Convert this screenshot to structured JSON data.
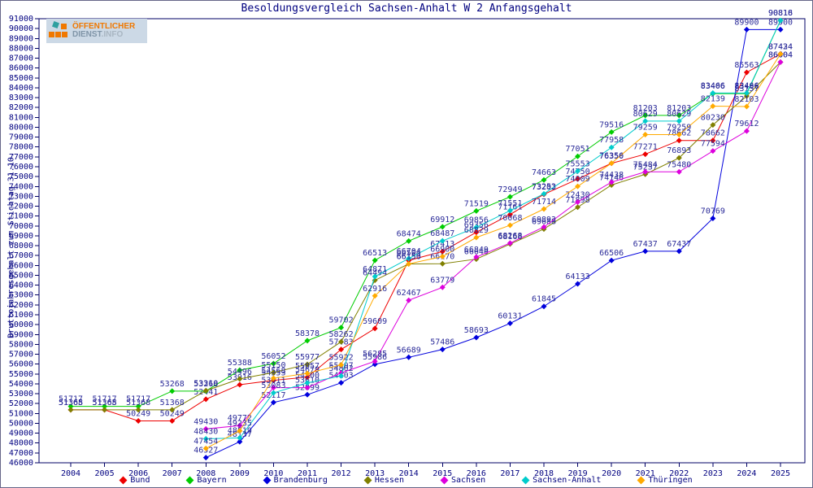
{
  "page": {
    "title": "Besoldungsvergleich Sachsen-Anhalt W 2 Anfangsgehalt"
  },
  "logo": {
    "line1": "ÖFFENTLICHER",
    "line2": "DIENST",
    "line2_suffix": ".INFO",
    "square_color": "#f07800",
    "accent_square_color": "#2fa0a0"
  },
  "axis": {
    "label_color": "#000080",
    "frame_color": "#000066",
    "point_label_color": "#2b2b99"
  },
  "chart_data": {
    "type": "line",
    "title": "Besoldungsvergleich Sachsen-Anhalt W 2 Anfangsgehalt",
    "xlabel": "",
    "ylabel": "Bruttojahresgehalt zum Stichtag 31.10.",
    "ylim": [
      46000,
      91000
    ],
    "ytick_step": 1000,
    "grid": false,
    "legend_position": "bottom",
    "point_labels": true,
    "years": [
      2004,
      2005,
      2006,
      2007,
      2008,
      2009,
      2010,
      2011,
      2012,
      2013,
      2014,
      2015,
      2016,
      2017,
      2018,
      2019,
      2020,
      2021,
      2022,
      2023,
      2024,
      2025
    ],
    "series": [
      {
        "name": "Bund",
        "color": "#ee0000",
        "values": [
          51365,
          51365,
          50249,
          50249,
          52441,
          53916,
          54353,
          54679,
          57483,
          59609,
          66504,
          67413,
          69356,
          71161,
          73202,
          74750,
          76350,
          77271,
          78662,
          78662,
          85563,
          87434
        ]
      },
      {
        "name": "Bayern",
        "color": "#00cc00",
        "values": [
          51717,
          51717,
          51717,
          53268,
          53268,
          55388,
          56052,
          58378,
          59702,
          66513,
          68474,
          69912,
          71519,
          72949,
          74663,
          77051,
          79516,
          81203,
          81203,
          83406,
          83406,
          90816
        ]
      },
      {
        "name": "Brandenburg",
        "color": "#0000dd",
        "values": [
          null,
          null,
          null,
          null,
          46527,
          48137,
          52117,
          52899,
          54103,
          55986,
          56689,
          57486,
          58693,
          60131,
          61845,
          64133,
          66506,
          67437,
          67437,
          70769,
          89900,
          89900
        ]
      },
      {
        "name": "Hessen",
        "color": "#808000",
        "values": [
          51368,
          51368,
          51368,
          51368,
          53310,
          54496,
          55150,
          55977,
          58262,
          64494,
          66150,
          66170,
          66640,
          68168,
          69688,
          71898,
          74146,
          75237,
          76893,
          80230,
          83157,
          86604
        ]
      },
      {
        "name": "Sachsen",
        "color": "#dd00dd",
        "values": [
          null,
          null,
          null,
          null,
          49430,
          49772,
          53611,
          53610,
          55107,
          56285,
          62467,
          63779,
          66849,
          68268,
          69893,
          72430,
          74438,
          75484,
          75480,
          77594,
          79612,
          86604
        ]
      },
      {
        "name": "Sachsen-Anhalt",
        "color": "#00cccc",
        "values": [
          null,
          null,
          null,
          null,
          48430,
          48519,
          53083,
          54100,
          54802,
          64871,
          66704,
          68487,
          69856,
          71551,
          73253,
          75553,
          77958,
          80629,
          80629,
          83466,
          83466,
          90818
        ]
      },
      {
        "name": "Thüringen",
        "color": "#ffaa00",
        "values": [
          null,
          null,
          null,
          null,
          47454,
          49235,
          54568,
          55057,
          55922,
          62916,
          66156,
          66900,
          68829,
          70068,
          71714,
          74009,
          76356,
          79259,
          79259,
          82139,
          82103,
          87424
        ]
      }
    ]
  }
}
